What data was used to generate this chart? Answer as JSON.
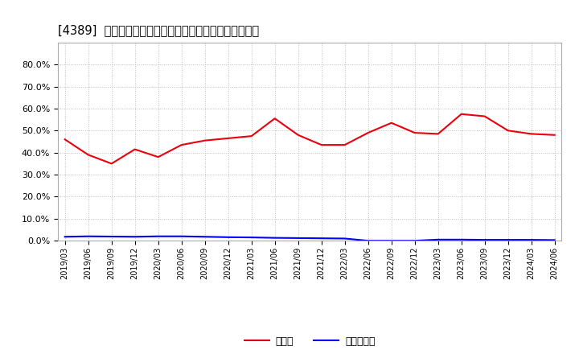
{
  "title": "[4389]  現顔金、有利子負債の総資産に対する比率の推移",
  "x_labels": [
    "2019/03",
    "2019/06",
    "2019/09",
    "2019/12",
    "2020/03",
    "2020/06",
    "2020/09",
    "2020/12",
    "2021/03",
    "2021/06",
    "2021/09",
    "2021/12",
    "2022/03",
    "2022/06",
    "2022/09",
    "2022/12",
    "2023/03",
    "2023/06",
    "2023/09",
    "2023/12",
    "2024/03",
    "2024/06"
  ],
  "cash_values": [
    0.46,
    0.39,
    0.35,
    0.415,
    0.38,
    0.435,
    0.455,
    0.465,
    0.475,
    0.555,
    0.48,
    0.435,
    0.435,
    0.49,
    0.535,
    0.49,
    0.485,
    0.575,
    0.565,
    0.5,
    0.485,
    0.48
  ],
  "debt_values": [
    0.018,
    0.02,
    0.019,
    0.018,
    0.02,
    0.02,
    0.018,
    0.016,
    0.015,
    0.013,
    0.012,
    0.011,
    0.01,
    0.0,
    0.0,
    0.0,
    0.005,
    0.005,
    0.004,
    0.004,
    0.004,
    0.003
  ],
  "cash_color": "#e8000d",
  "debt_color": "#0000ff",
  "background_color": "#ffffff",
  "plot_bg_color": "#ffffff",
  "grid_color": "#bbbbbb",
  "ylim": [
    0.0,
    0.9
  ],
  "yticks": [
    0.0,
    0.1,
    0.2,
    0.3,
    0.4,
    0.5,
    0.6,
    0.7,
    0.8
  ],
  "legend_cash": "現顔金",
  "legend_debt": "有利子負債"
}
